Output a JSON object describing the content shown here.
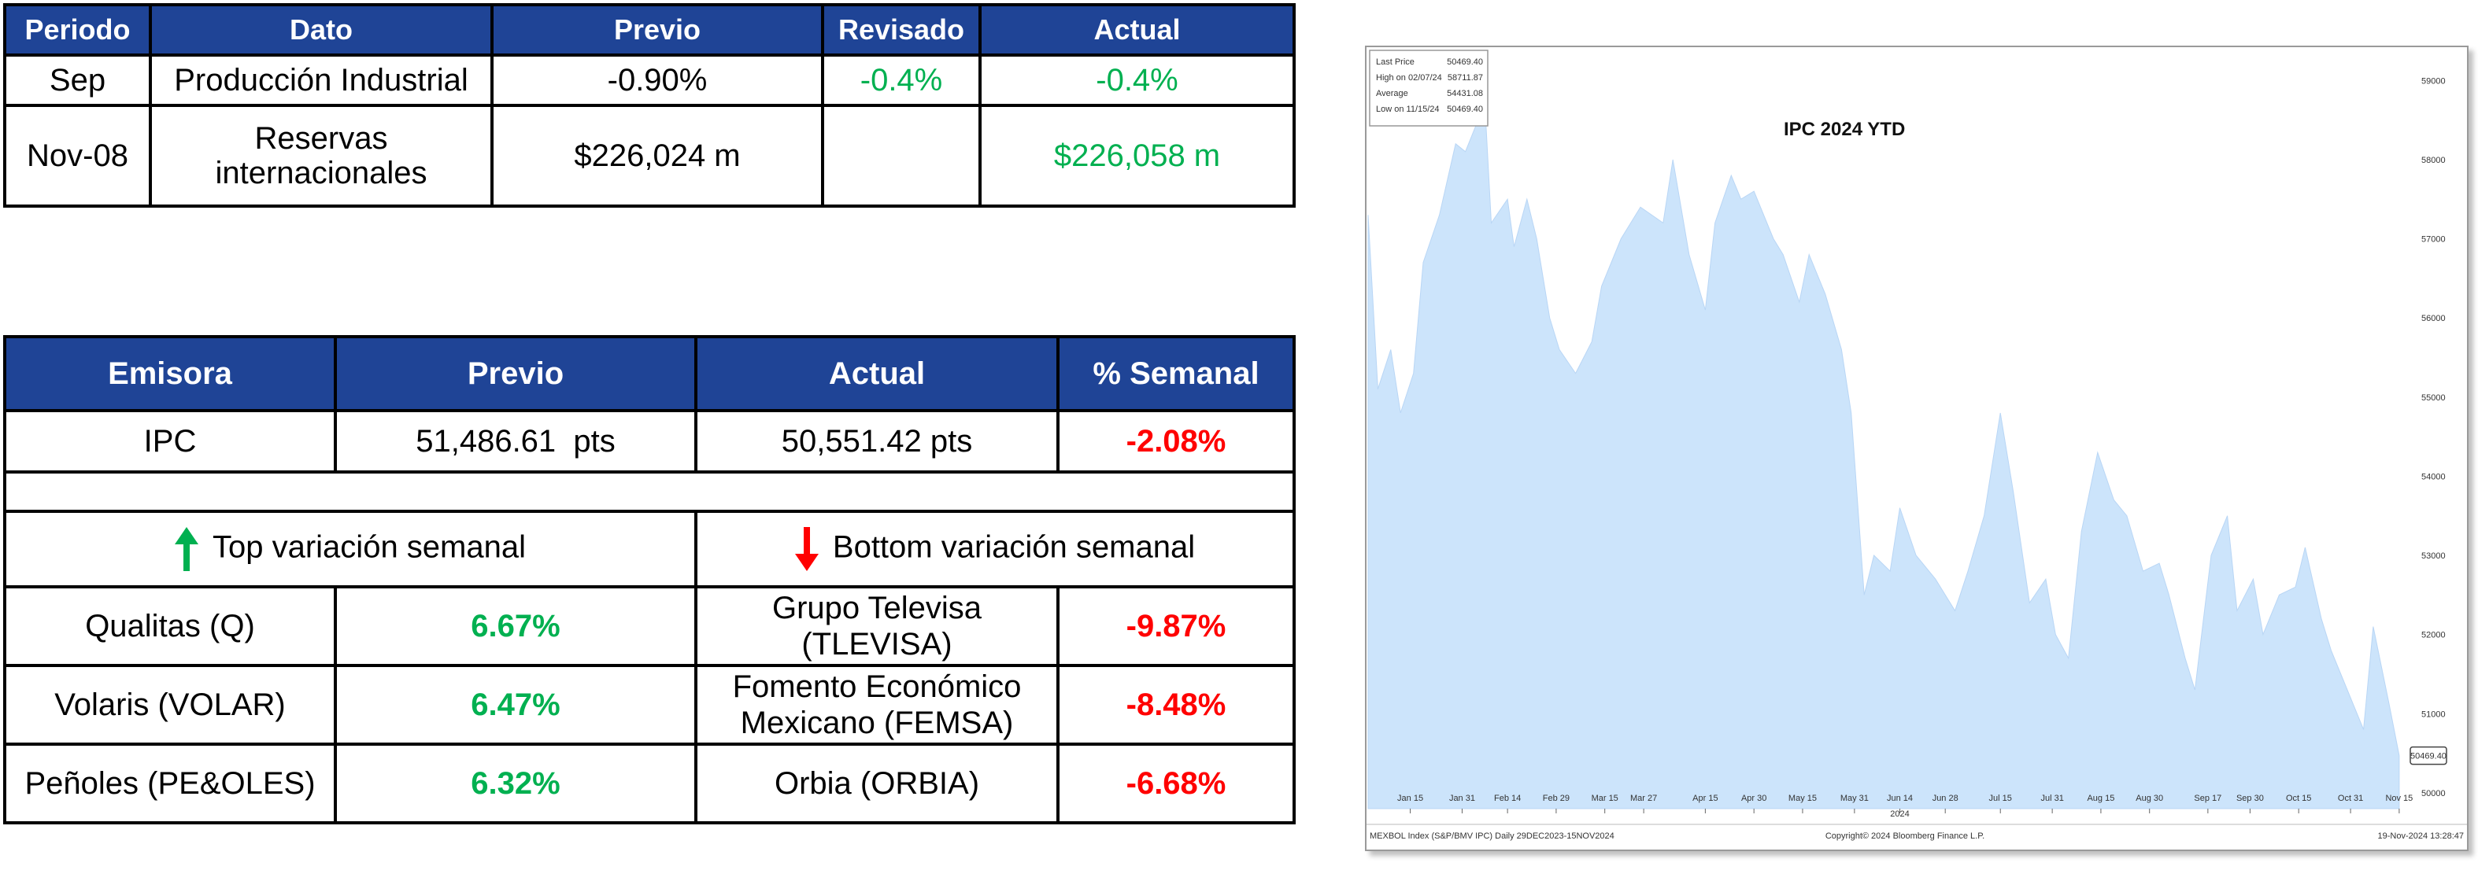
{
  "table1": {
    "headers": [
      "Periodo",
      "Dato",
      "Previo",
      "Revisado",
      "Actual"
    ],
    "rows": [
      {
        "periodo": "Sep",
        "dato": "Producción Industrial",
        "previo": "-0.90%",
        "revisado": "-0.4%",
        "actual": "-0.4%"
      },
      {
        "periodo": "Nov-08",
        "dato_l1": "Reservas",
        "dato_l2": "internacionales",
        "previo": "$226,024 m",
        "revisado": "",
        "actual": "$226,058 m"
      }
    ]
  },
  "table2": {
    "headers": [
      "Emisora",
      "Previo",
      "Actual",
      "% Semanal"
    ],
    "ipc": {
      "emisora": "IPC",
      "previo": "51,486.61  pts",
      "actual": "50,551.42 pts",
      "semanal": "-2.08%"
    },
    "top_label": "Top variación semanal",
    "bottom_label": "Bottom variación semanal",
    "movers": [
      {
        "top_name": "Qualitas (Q)",
        "top_pct": "6.67%",
        "bottom_l1": "Grupo Televisa",
        "bottom_l2": "(TLEVISA)",
        "bottom_pct": "-9.87%"
      },
      {
        "top_name": "Volaris (VOLAR)",
        "top_pct": "6.47%",
        "bottom_l1": "Fomento Económico",
        "bottom_l2": "Mexicano (FEMSA)",
        "bottom_pct": "-8.48%"
      },
      {
        "top_name": "Peñoles (PE&OLES)",
        "top_pct": "6.32%",
        "bottom_l1": "Orbia (ORBIA)",
        "bottom_l2": "",
        "bottom_pct": "-6.68%"
      }
    ],
    "colors": {
      "header_bg": "#1f4496",
      "green": "#00b050",
      "red": "#ff0000"
    }
  },
  "chart_data": {
    "type": "area",
    "title": "IPC 2024 YTD",
    "legend": {
      "position": "top-left",
      "items": [
        {
          "label": "Last Price",
          "value": "50469.40"
        },
        {
          "label": "High on 02/07/24",
          "value": "58711.87"
        },
        {
          "label": "Average",
          "value": "54431.08"
        },
        {
          "label": "Low on 11/15/24",
          "value": "50469.40"
        }
      ]
    },
    "last_price_tag": "50469.40",
    "ylim": [
      49800,
      59400
    ],
    "yticks": [
      "59000",
      "58000",
      "57000",
      "56000",
      "55000",
      "54000",
      "53000",
      "52000",
      "51000",
      "50000"
    ],
    "xticks": [
      "Jan 15",
      "Jan 31",
      "Feb 14",
      "Feb 29",
      "Mar 15",
      "Mar 27",
      "Apr 15",
      "Apr 30",
      "May 15",
      "May 31",
      "Jun 14",
      "Jun 28",
      "Jul 15",
      "Jul 31",
      "Aug 15",
      "Aug 30",
      "Sep 17",
      "Sep 30",
      "Oct 15",
      "Oct 31",
      "Nov 15"
    ],
    "x_year": "2024",
    "footer_left": "MEXBOL Index (S&P/BMV IPC)  Daily 29DEC2023-15NOV2024",
    "footer_center": "Copyright© 2024 Bloomberg Finance L.P.",
    "footer_right": "19-Nov-2024 13:28:47",
    "fill_color": "#cce4fb",
    "x": [
      "2024-01-02",
      "2024-01-05",
      "2024-01-09",
      "2024-01-12",
      "2024-01-16",
      "2024-01-19",
      "2024-01-24",
      "2024-01-29",
      "2024-02-01",
      "2024-02-07",
      "2024-02-09",
      "2024-02-14",
      "2024-02-16",
      "2024-02-20",
      "2024-02-23",
      "2024-02-27",
      "2024-03-01",
      "2024-03-06",
      "2024-03-11",
      "2024-03-14",
      "2024-03-20",
      "2024-03-26",
      "2024-04-02",
      "2024-04-05",
      "2024-04-10",
      "2024-04-15",
      "2024-04-18",
      "2024-04-23",
      "2024-04-26",
      "2024-04-30",
      "2024-05-06",
      "2024-05-09",
      "2024-05-14",
      "2024-05-17",
      "2024-05-22",
      "2024-05-27",
      "2024-05-30",
      "2024-06-03",
      "2024-06-06",
      "2024-06-11",
      "2024-06-14",
      "2024-06-19",
      "2024-06-25",
      "2024-07-01",
      "2024-07-05",
      "2024-07-10",
      "2024-07-15",
      "2024-07-19",
      "2024-07-24",
      "2024-07-29",
      "2024-08-01",
      "2024-08-05",
      "2024-08-09",
      "2024-08-14",
      "2024-08-19",
      "2024-08-23",
      "2024-08-28",
      "2024-09-02",
      "2024-09-05",
      "2024-09-10",
      "2024-09-13",
      "2024-09-18",
      "2024-09-23",
      "2024-09-26",
      "2024-10-01",
      "2024-10-04",
      "2024-10-09",
      "2024-10-14",
      "2024-10-17",
      "2024-10-22",
      "2024-10-25",
      "2024-10-30",
      "2024-11-04",
      "2024-11-07",
      "2024-11-12",
      "2024-11-15"
    ],
    "values": [
      57300,
      55100,
      55600,
      54800,
      55300,
      56700,
      57300,
      58200,
      58100,
      58710,
      57200,
      57500,
      56900,
      57500,
      57000,
      56000,
      55600,
      55300,
      55700,
      56400,
      57000,
      57400,
      57200,
      58000,
      56800,
      56100,
      57200,
      57800,
      57500,
      57600,
      57000,
      56800,
      56200,
      56800,
      56300,
      55600,
      54800,
      52500,
      53000,
      52800,
      53600,
      53000,
      52700,
      52300,
      52800,
      53500,
      54800,
      53800,
      52400,
      52700,
      52000,
      51700,
      53300,
      54300,
      53700,
      53500,
      52800,
      52900,
      52500,
      51700,
      51300,
      53000,
      53500,
      52300,
      52700,
      52000,
      52500,
      52600,
      53100,
      52200,
      51800,
      51300,
      50800,
      52100,
      51100,
      50470
    ]
  }
}
